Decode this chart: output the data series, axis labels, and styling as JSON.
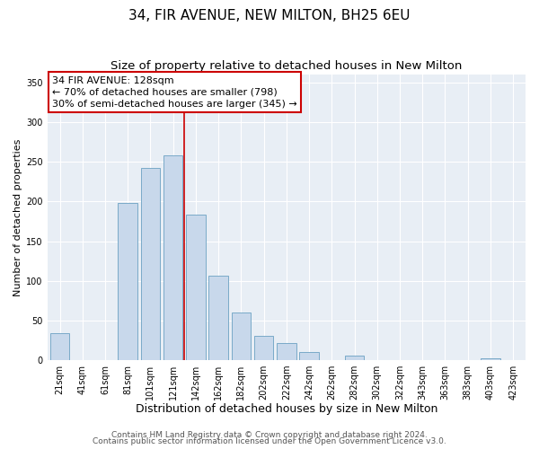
{
  "title": "34, FIR AVENUE, NEW MILTON, BH25 6EU",
  "subtitle": "Size of property relative to detached houses in New Milton",
  "xlabel": "Distribution of detached houses by size in New Milton",
  "ylabel": "Number of detached properties",
  "bar_color": "#c8d8eb",
  "bar_edgecolor": "#7aaac8",
  "background_color": "#ffffff",
  "plot_bg_color": "#e8eef5",
  "grid_color": "#ffffff",
  "categories": [
    "21sqm",
    "41sqm",
    "61sqm",
    "81sqm",
    "101sqm",
    "121sqm",
    "142sqm",
    "162sqm",
    "182sqm",
    "202sqm",
    "222sqm",
    "242sqm",
    "262sqm",
    "282sqm",
    "302sqm",
    "322sqm",
    "343sqm",
    "363sqm",
    "383sqm",
    "403sqm",
    "423sqm"
  ],
  "values": [
    34,
    0,
    0,
    198,
    242,
    258,
    183,
    106,
    60,
    30,
    21,
    10,
    0,
    6,
    0,
    0,
    0,
    0,
    0,
    2,
    0
  ],
  "ylim": [
    0,
    360
  ],
  "yticks": [
    0,
    50,
    100,
    150,
    200,
    250,
    300,
    350
  ],
  "vline_x": 5.5,
  "vline_color": "#cc0000",
  "annotation_line1": "34 FIR AVENUE: 128sqm",
  "annotation_line2": "← 70% of detached houses are smaller (798)",
  "annotation_line3": "30% of semi-detached houses are larger (345) →",
  "footer1": "Contains HM Land Registry data © Crown copyright and database right 2024.",
  "footer2": "Contains public sector information licensed under the Open Government Licence v3.0.",
  "title_fontsize": 11,
  "subtitle_fontsize": 9.5,
  "xlabel_fontsize": 9,
  "ylabel_fontsize": 8,
  "tick_fontsize": 7,
  "annotation_fontsize": 8,
  "footer_fontsize": 6.5
}
